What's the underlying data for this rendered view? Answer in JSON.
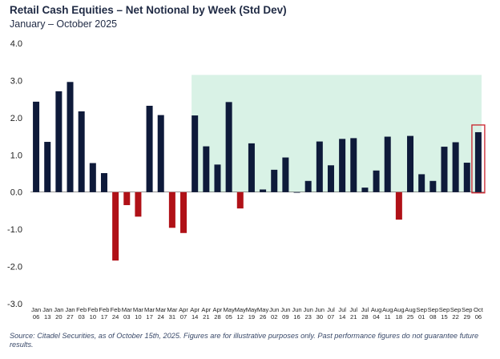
{
  "title": "Retail Cash Equities – Net Notional by Week (Std Dev)",
  "subtitle": "January – October 2025",
  "source": "Source: Citadel Securities, as of October 15th, 2025. Figures are for illustrative purposes only. Past performance figures do not guarantee future results.",
  "colors": {
    "positive": "#0e1a3a",
    "negative": "#b01117",
    "shade": "#d9f2e6",
    "highlight_box": "#c8202a"
  },
  "chart_data": {
    "type": "bar",
    "title": "Retail Cash Equities – Net Notional by Week (Std Dev)",
    "subtitle": "January – October 2025",
    "xlabel": "",
    "ylabel": "",
    "ylim": [
      -3.0,
      4.0
    ],
    "yticks": [
      "4.0",
      "3.0",
      "2.0",
      "1.0",
      "0.0",
      "-1.0",
      "-2.0",
      "-3.0"
    ],
    "grid": false,
    "legend": "none",
    "categories": [
      [
        "Jan",
        "06"
      ],
      [
        "Jan",
        "13"
      ],
      [
        "Jan",
        "20"
      ],
      [
        "Jan",
        "27"
      ],
      [
        "Feb",
        "03"
      ],
      [
        "Feb",
        "10"
      ],
      [
        "Feb",
        "17"
      ],
      [
        "Feb",
        "24"
      ],
      [
        "Mar",
        "03"
      ],
      [
        "Mar",
        "10"
      ],
      [
        "Mar",
        "17"
      ],
      [
        "Mar",
        "24"
      ],
      [
        "Mar",
        "31"
      ],
      [
        "Apr",
        "07"
      ],
      [
        "Apr",
        "14"
      ],
      [
        "Apr",
        "21"
      ],
      [
        "Apr",
        "28"
      ],
      [
        "May",
        "05"
      ],
      [
        "May",
        "12"
      ],
      [
        "May",
        "19"
      ],
      [
        "May",
        "26"
      ],
      [
        "Jun",
        "02"
      ],
      [
        "Jun",
        "09"
      ],
      [
        "Jun",
        "16"
      ],
      [
        "Jun",
        "23"
      ],
      [
        "Jun",
        "30"
      ],
      [
        "Jul",
        "07"
      ],
      [
        "Jul",
        "14"
      ],
      [
        "Jul",
        "21"
      ],
      [
        "Jul",
        "28"
      ],
      [
        "Aug",
        "04"
      ],
      [
        "Aug",
        "11"
      ],
      [
        "Aug",
        "18"
      ],
      [
        "Aug",
        "25"
      ],
      [
        "Sep",
        "01"
      ],
      [
        "Sep",
        "08"
      ],
      [
        "Sep",
        "15"
      ],
      [
        "Sep",
        "22"
      ],
      [
        "Sep",
        "29"
      ],
      [
        "Oct",
        "06"
      ]
    ],
    "values": [
      2.43,
      1.35,
      2.71,
      2.96,
      2.17,
      0.78,
      0.51,
      -1.84,
      -0.35,
      -0.66,
      2.32,
      2.07,
      -0.96,
      -1.1,
      2.06,
      1.23,
      0.74,
      2.42,
      -0.44,
      1.31,
      0.07,
      0.6,
      0.93,
      0.0,
      0.3,
      1.36,
      0.72,
      1.43,
      1.45,
      0.12,
      0.58,
      1.49,
      -0.74,
      1.51,
      0.48,
      0.3,
      1.22,
      1.34,
      0.79,
      1.61
    ],
    "shaded_range": {
      "from": "Apr 14",
      "to": "Oct 06"
    },
    "highlighted": "Oct 06"
  }
}
